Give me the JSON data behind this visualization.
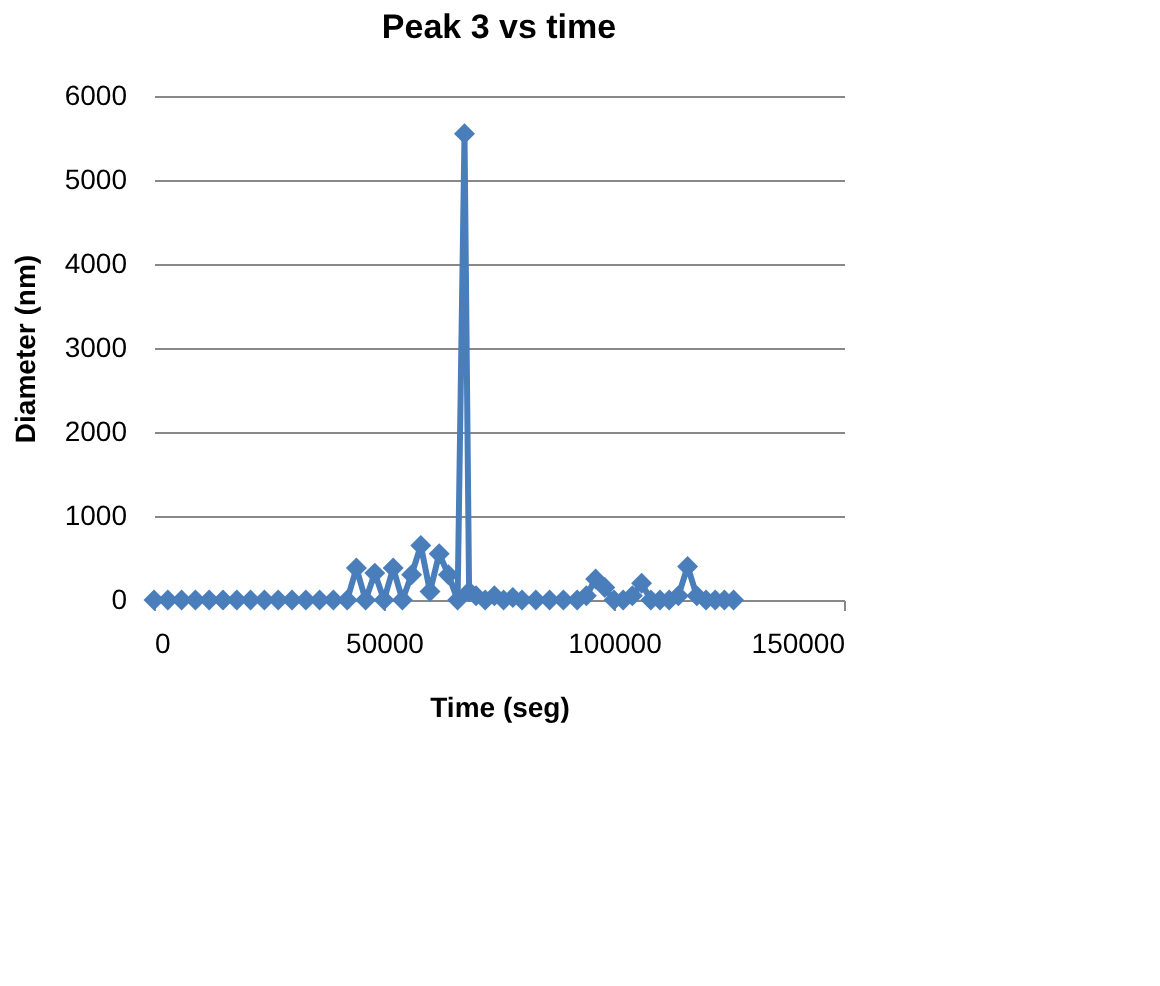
{
  "chart_data": {
    "type": "line",
    "title": "Peak 3 vs time",
    "xlabel": "Time (seg)",
    "ylabel": "Diameter (nm)",
    "series": [
      {
        "color": "#4a7ebb",
        "x": [
          0,
          3000,
          6000,
          9000,
          12000,
          15000,
          18000,
          21000,
          24000,
          27000,
          30000,
          33000,
          36000,
          39000,
          42000,
          44000,
          46000,
          48000,
          50000,
          52000,
          54000,
          56000,
          58000,
          60000,
          62000,
          64000,
          66000,
          67500,
          68500,
          70000,
          72000,
          74000,
          76000,
          78000,
          80000,
          83000,
          86000,
          89000,
          92000,
          94000,
          96000,
          98000,
          100000,
          102000,
          104000,
          106000,
          108000,
          110000,
          112000,
          114000,
          116000,
          118000,
          120000,
          122000,
          124000,
          126000
        ],
        "values": [
          0,
          0,
          0,
          0,
          0,
          0,
          0,
          0,
          0,
          0,
          0,
          0,
          0,
          0,
          0,
          380,
          0,
          320,
          0,
          380,
          0,
          300,
          650,
          100,
          550,
          300,
          0,
          5550,
          100,
          50,
          0,
          50,
          0,
          30,
          0,
          0,
          0,
          0,
          0,
          50,
          250,
          150,
          0,
          0,
          50,
          200,
          0,
          0,
          0,
          50,
          400,
          50,
          0,
          0,
          0,
          0
        ]
      }
    ],
    "xlim": [
      0,
      150000
    ],
    "xticks": [
      0,
      50000,
      100000,
      150000
    ],
    "ylim": [
      0,
      6000
    ],
    "yticks": [
      0,
      1000,
      2000,
      3000,
      4000,
      5000,
      6000
    ],
    "grid": "y",
    "marker": "diamond",
    "line_style": "solid"
  }
}
